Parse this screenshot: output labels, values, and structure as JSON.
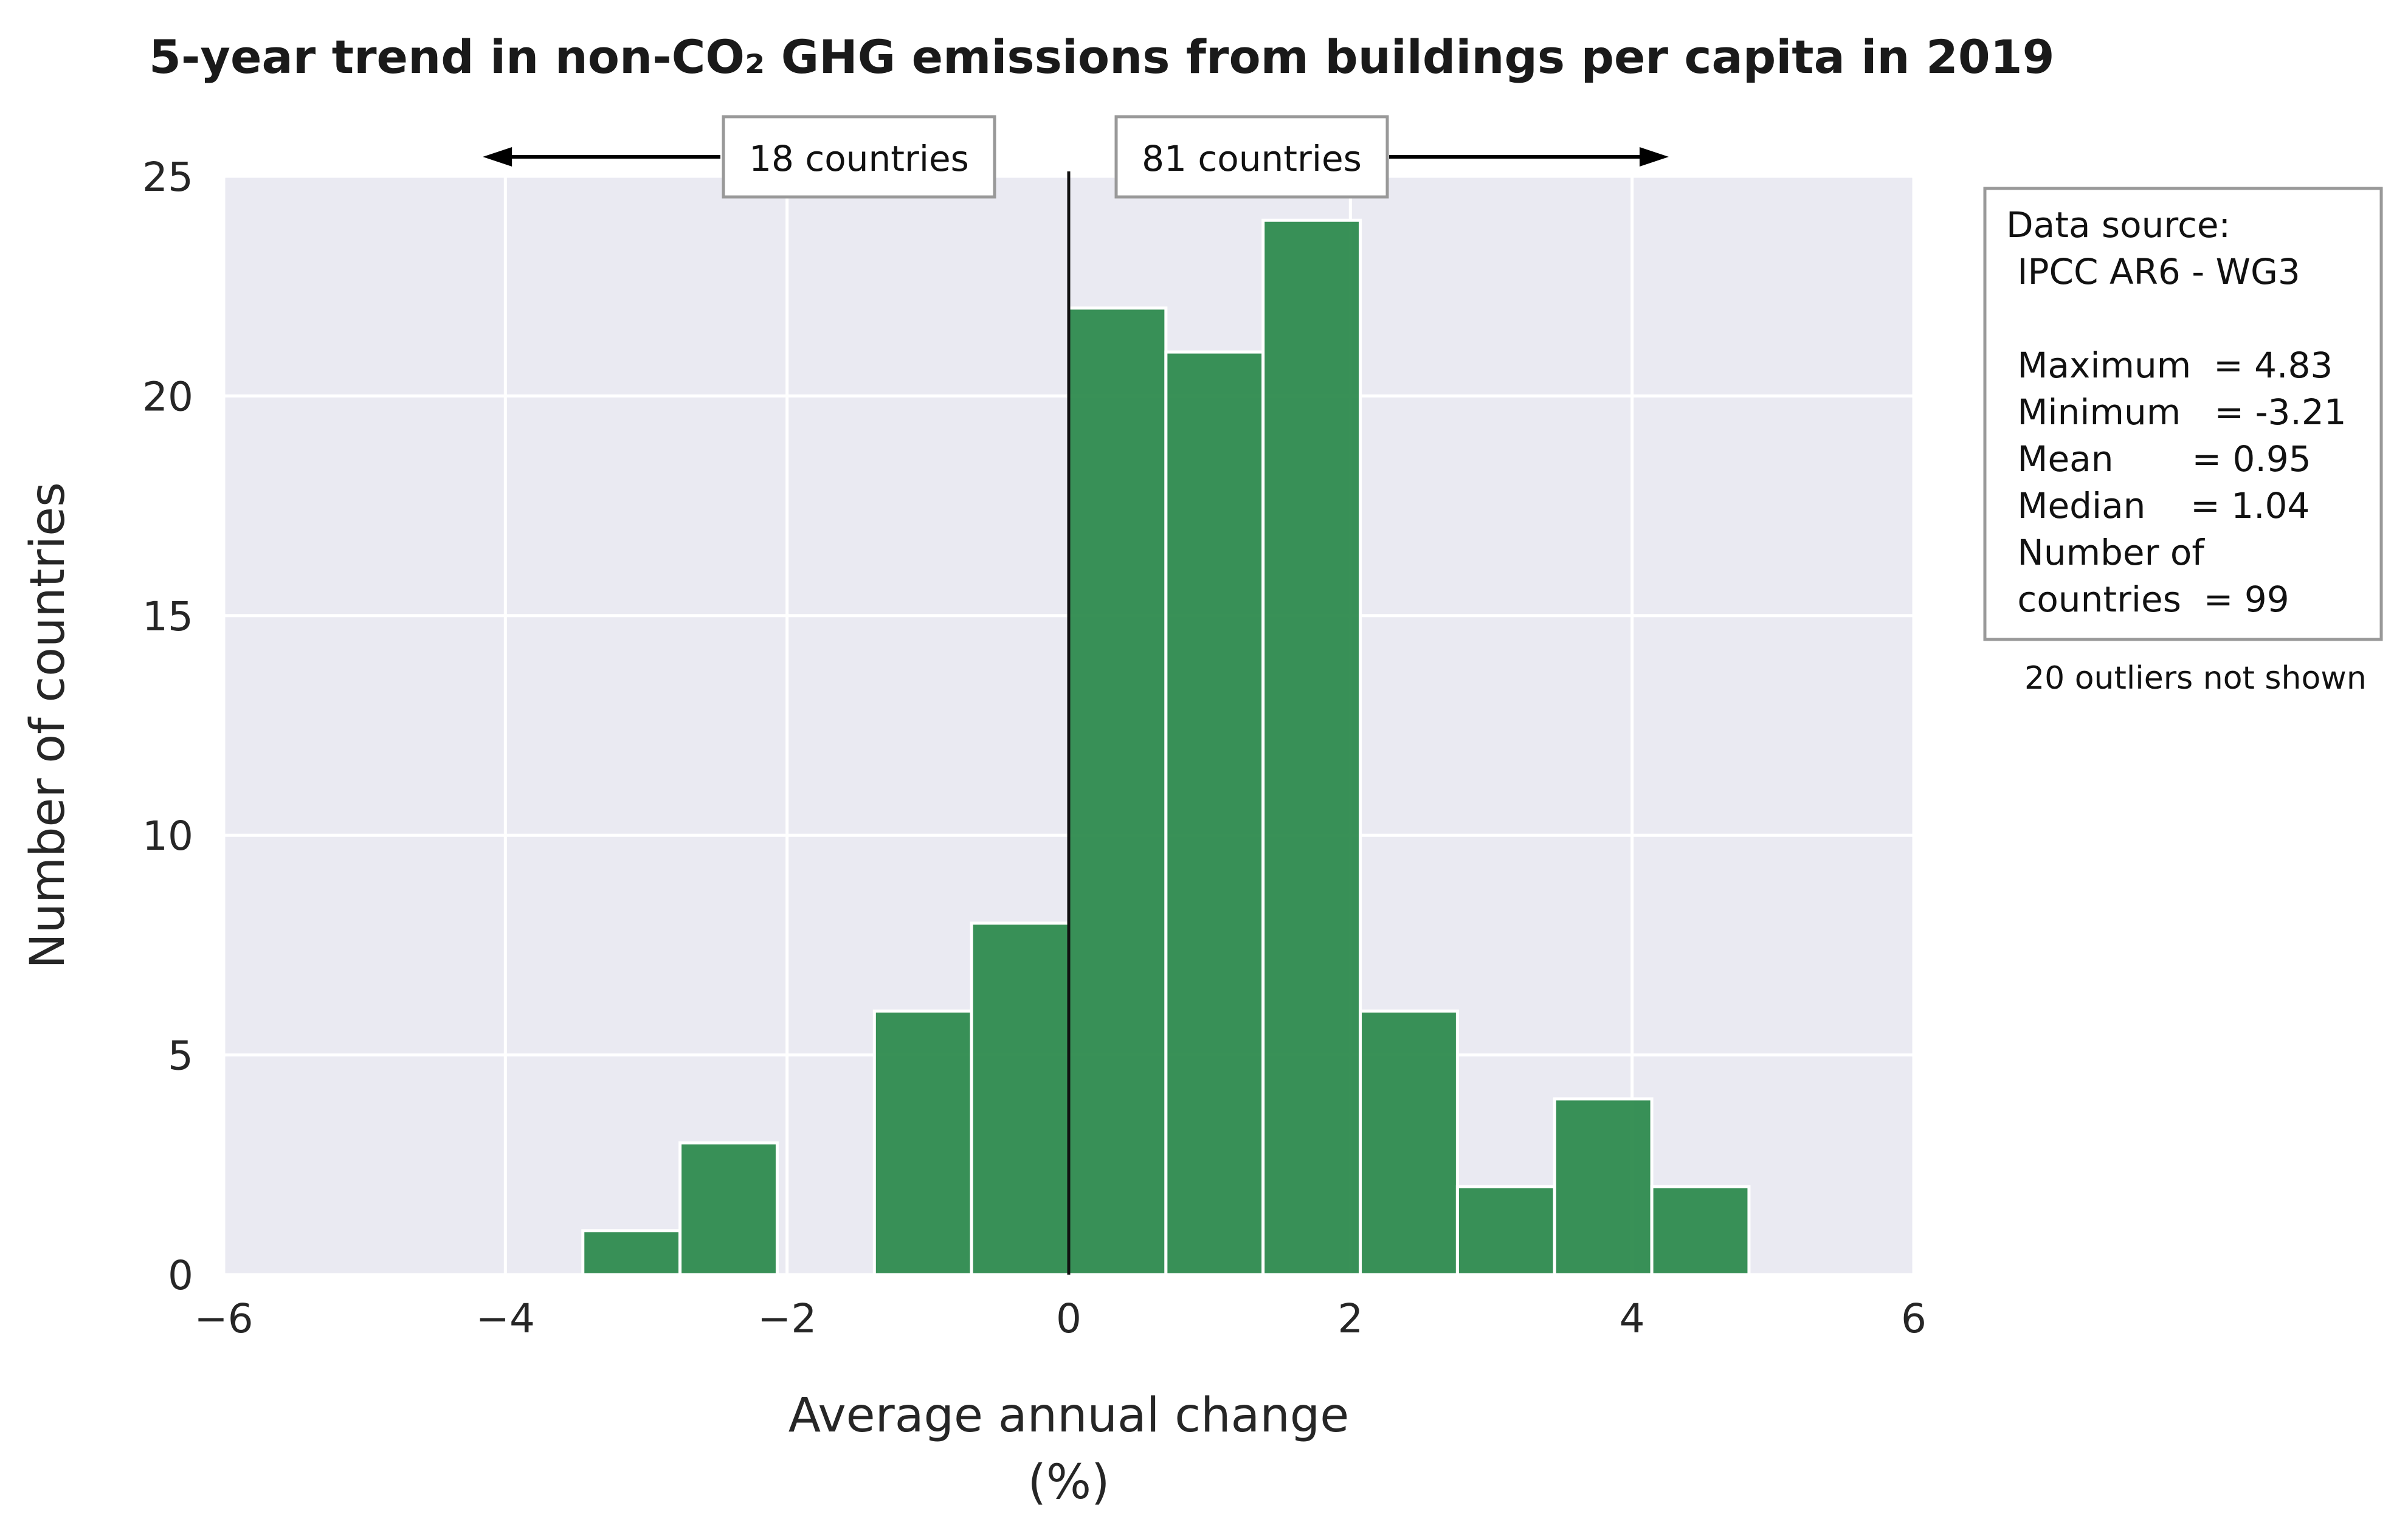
{
  "chart_data": {
    "type": "bar",
    "title": "5-year trend in non-CO₂ GHG emissions from buildings per capita in 2019",
    "xlabel_line1": "Average annual change",
    "xlabel_line2": "(%)",
    "ylabel": "Number of countries",
    "xlim": [
      -6,
      6
    ],
    "ylim": [
      0,
      25
    ],
    "x_ticks": [
      -6,
      -4,
      -2,
      0,
      2,
      4,
      6
    ],
    "x_tick_labels": [
      "−6",
      "−4",
      "−2",
      "0",
      "2",
      "4",
      "6"
    ],
    "y_ticks": [
      0,
      5,
      10,
      15,
      20,
      25
    ],
    "y_tick_labels": [
      "0",
      "5",
      "10",
      "15",
      "20",
      "25"
    ],
    "grid": true,
    "bar_color": "#2e8b4e",
    "plot_background": "#eaeaf2",
    "bins": [
      {
        "x0": -3.45,
        "x1": -2.76,
        "count": 1
      },
      {
        "x0": -2.76,
        "x1": -2.07,
        "count": 3
      },
      {
        "x0": -1.38,
        "x1": -0.69,
        "count": 6
      },
      {
        "x0": -0.69,
        "x1": 0.0,
        "count": 8
      },
      {
        "x0": 0.0,
        "x1": 0.69,
        "count": 22
      },
      {
        "x0": 0.69,
        "x1": 1.38,
        "count": 21
      },
      {
        "x0": 1.38,
        "x1": 2.07,
        "count": 24
      },
      {
        "x0": 2.07,
        "x1": 2.76,
        "count": 6
      },
      {
        "x0": 2.76,
        "x1": 3.45,
        "count": 2
      },
      {
        "x0": 3.45,
        "x1": 4.14,
        "count": 4
      },
      {
        "x0": 4.14,
        "x1": 4.83,
        "count": 2
      }
    ],
    "zero_line_x": 0,
    "annotations": {
      "left_count": "18 countries",
      "right_count": "81 countries",
      "left_arrow_to": -4.1,
      "right_arrow_to": 4.2
    },
    "info_box": {
      "lines": [
        "Data source:",
        " IPCC AR6 - WG3",
        "",
        " Maximum  = 4.83",
        " Minimum   = -3.21",
        " Mean       = 0.95",
        " Median    = 1.04",
        " Number of",
        " countries  = 99"
      ],
      "footnote": "20 outliers not shown"
    }
  }
}
